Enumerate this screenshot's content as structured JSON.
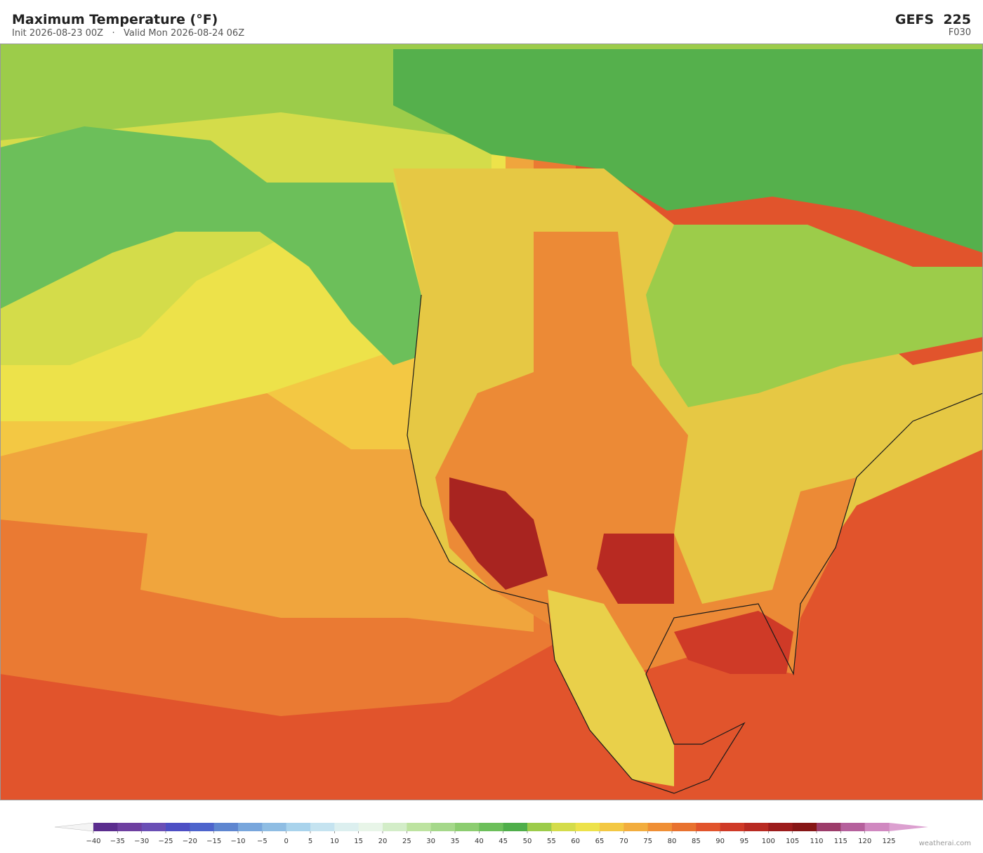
{
  "header": {
    "title": "Maximum Temperature  (°F)",
    "subtitle": "Init 2026-08-23 00Z   ·   Valid Mon 2026-08-24 06Z",
    "model": "GEFS  225",
    "forecast_hour": "F030"
  },
  "colorbar": {
    "ticks": [
      "−40",
      "−35",
      "−30",
      "−25",
      "−20",
      "−15",
      "−10",
      "−5",
      "0",
      "5",
      "10",
      "15",
      "20",
      "25",
      "30",
      "35",
      "40",
      "45",
      "50",
      "55",
      "60",
      "65",
      "70",
      "75",
      "80",
      "85",
      "90",
      "95",
      "100",
      "105",
      "110",
      "115",
      "120",
      "125"
    ],
    "colors": [
      "#5b2d8e",
      "#6e3fa0",
      "#6a4fb5",
      "#4d4fc4",
      "#4d64cc",
      "#5e86d0",
      "#78a6dc",
      "#8fbde3",
      "#a9d3ec",
      "#c5e3f0",
      "#dcefef",
      "#e8f5e8",
      "#d3edc8",
      "#bde3a0",
      "#a5d88a",
      "#8ccd70",
      "#6cbf5a",
      "#4fae4a",
      "#9ccc4a",
      "#d4dc4a",
      "#ede24a",
      "#f3c843",
      "#f2ad3e",
      "#ef8f35",
      "#e8722f",
      "#e1542c",
      "#cf3a27",
      "#b82a22",
      "#9c1c1c",
      "#861616",
      "#9c3c6a",
      "#b5609c",
      "#d088c0"
    ],
    "under_color": "#f4f4f4",
    "over_color": "#dca0d0"
  },
  "footer": {
    "credit": "weatherai.com"
  }
}
